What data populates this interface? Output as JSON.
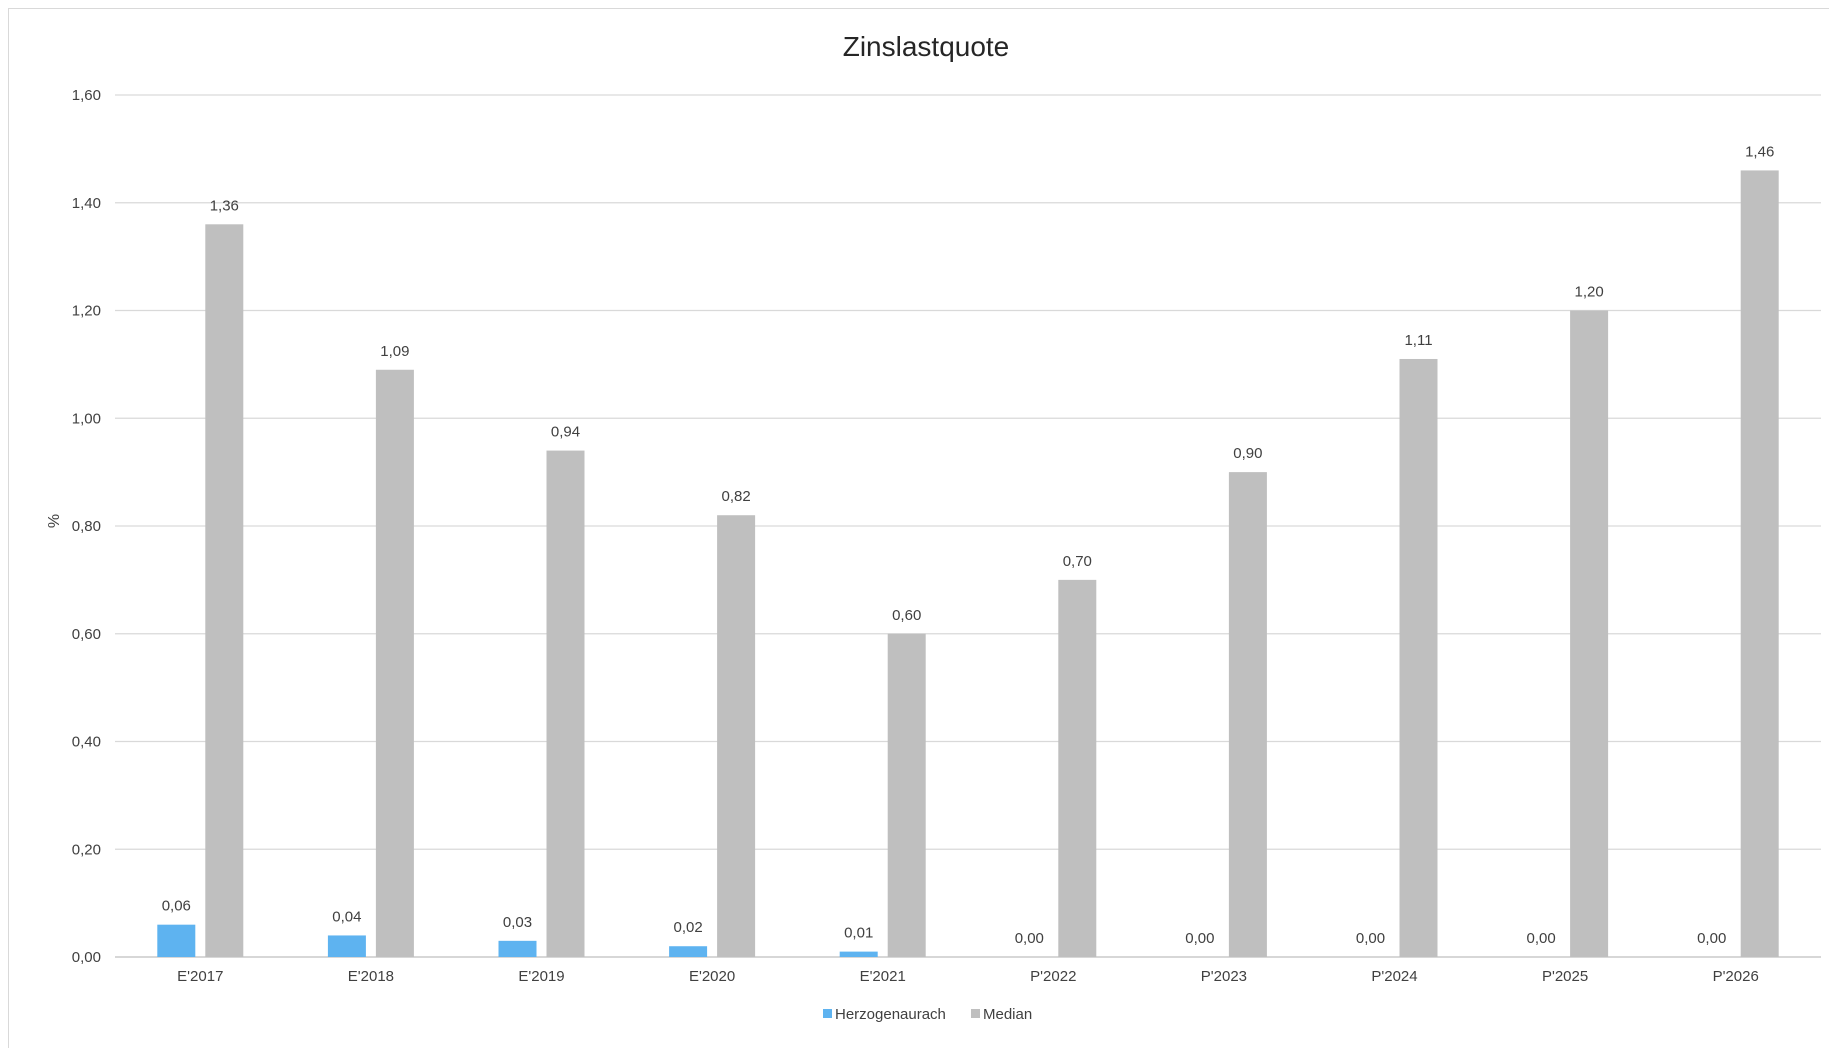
{
  "chart_data": {
    "type": "bar",
    "title": "Zinslastquote",
    "xlabel": "",
    "ylabel": "%",
    "ylim": [
      0,
      1.6
    ],
    "ytick_labels": [
      "0,00",
      "0,20",
      "0,40",
      "0,60",
      "0,80",
      "1,00",
      "1,20",
      "1,40",
      "1,60"
    ],
    "yticks": [
      0,
      0.2,
      0.4,
      0.6,
      0.8,
      1.0,
      1.2,
      1.4,
      1.6
    ],
    "grid": true,
    "legend_position": "bottom",
    "categories": [
      "E'2017",
      "E'2018",
      "E'2019",
      "E'2020",
      "E'2021",
      "P'2022",
      "P'2023",
      "P'2024",
      "P'2025",
      "P'2026"
    ],
    "series": [
      {
        "name": "Herzogenaurach",
        "color": "#5eb3f0",
        "values": [
          0.06,
          0.04,
          0.03,
          0.02,
          0.01,
          0.0,
          0.0,
          0.0,
          0.0,
          0.0
        ],
        "labels": [
          "0,06",
          "0,04",
          "0,03",
          "0,02",
          "0,01",
          "0,00",
          "0,00",
          "0,00",
          "0,00",
          "0,00"
        ]
      },
      {
        "name": "Median",
        "color": "#bfbfbf",
        "values": [
          1.36,
          1.09,
          0.94,
          0.82,
          0.6,
          0.7,
          0.9,
          1.11,
          1.2,
          1.46
        ],
        "labels": [
          "1,36",
          "1,09",
          "0,94",
          "0,82",
          "0,60",
          "0,70",
          "0,90",
          "1,11",
          "1,20",
          "1,46"
        ]
      }
    ]
  }
}
